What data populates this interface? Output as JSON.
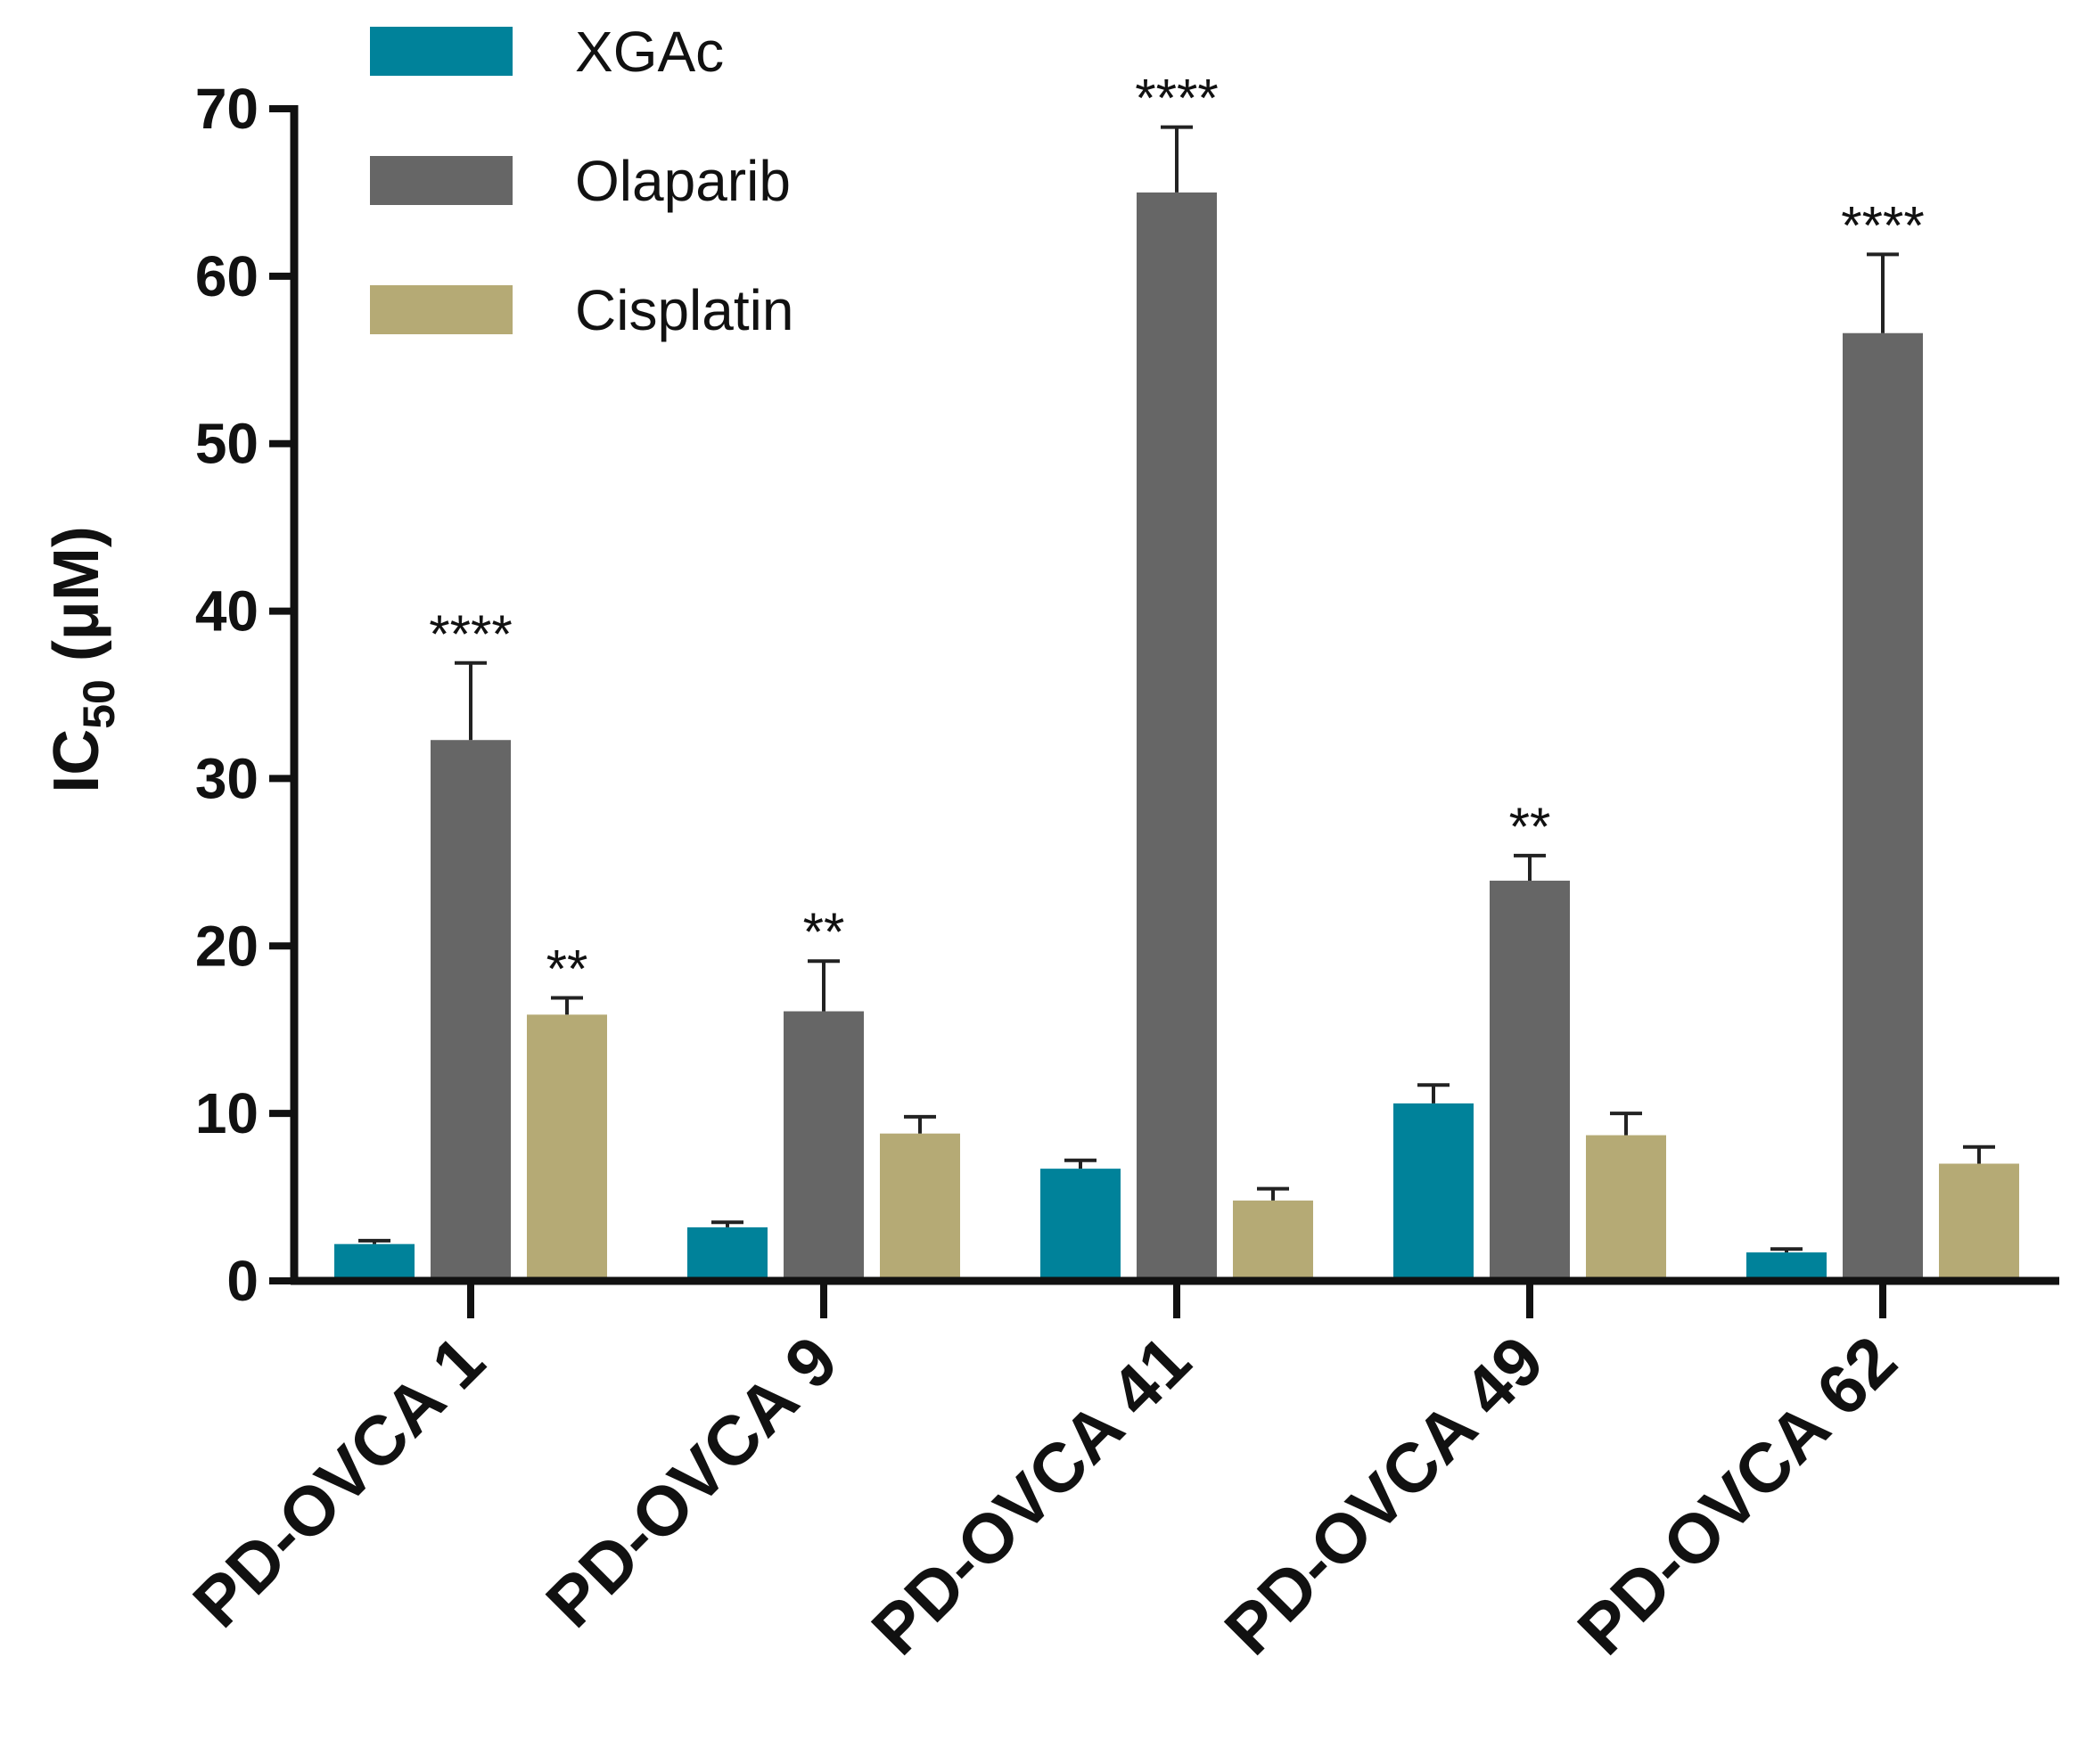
{
  "chart_data": {
    "type": "bar",
    "title": "",
    "xlabel": "",
    "ylabel": {
      "main": "IC",
      "subscript": "50",
      "unit": " (μM)"
    },
    "ylim": [
      0,
      70
    ],
    "yticks": [
      0,
      10,
      20,
      30,
      40,
      50,
      60,
      70
    ],
    "categories": [
      "PD-OVCA 1",
      "PD-OVCA 9",
      "PD-OVCA 41",
      "PD-OVCA 49",
      "PD-OVCA 62"
    ],
    "series": [
      {
        "name": "XGAc",
        "color": "#00829a",
        "values": [
          2.2,
          3.2,
          6.7,
          10.6,
          1.7
        ],
        "errors": [
          0.2,
          0.3,
          0.5,
          1.1,
          0.2
        ],
        "significance": [
          "",
          "",
          "",
          "",
          ""
        ]
      },
      {
        "name": "Olaparib",
        "color": "#666666",
        "values": [
          32.3,
          16.1,
          65.0,
          23.9,
          56.6
        ],
        "errors": [
          4.6,
          3.0,
          3.9,
          1.5,
          4.7
        ],
        "significance": [
          "****",
          "**",
          "****",
          "**",
          "****"
        ]
      },
      {
        "name": "Cisplatin",
        "color": "#b5aa75",
        "values": [
          15.9,
          8.8,
          4.8,
          8.7,
          7.0
        ],
        "errors": [
          1.0,
          1.0,
          0.7,
          1.3,
          1.0
        ],
        "significance": [
          "**",
          "",
          "",
          "",
          ""
        ]
      }
    ],
    "legend_position": "top-left",
    "grid": false
  }
}
